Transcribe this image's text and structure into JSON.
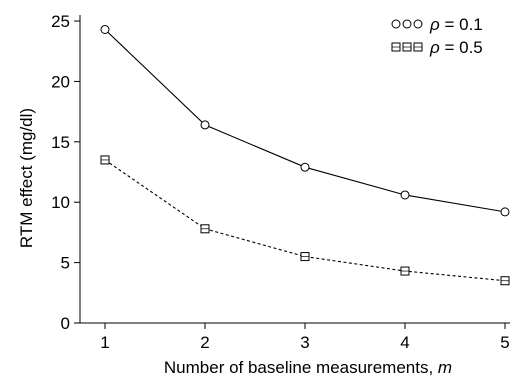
{
  "chart_data": {
    "type": "line",
    "x": [
      1,
      2,
      3,
      4,
      5
    ],
    "xlim": [
      0.75,
      5.05
    ],
    "ylim": [
      0,
      25.5
    ],
    "xticks": [
      1,
      2,
      3,
      4,
      5
    ],
    "yticks": [
      0,
      5,
      10,
      15,
      20,
      25
    ],
    "xlabel": "Number of baseline measurements, ",
    "xlabel_var": "m",
    "ylabel": "RTM effect (mg/dl)",
    "grid": false,
    "legend_position": "top-right",
    "series": [
      {
        "name_symbol": "ρ",
        "name_value": " = 0.1",
        "marker": "circle",
        "line_style": "solid",
        "color": "#000000",
        "values": [
          24.3,
          16.4,
          12.9,
          10.6,
          9.2
        ]
      },
      {
        "name_symbol": "ρ",
        "name_value": " = 0.5",
        "marker": "square",
        "line_style": "dashed",
        "color": "#000000",
        "values": [
          13.5,
          7.8,
          5.5,
          4.3,
          3.5
        ]
      }
    ]
  }
}
